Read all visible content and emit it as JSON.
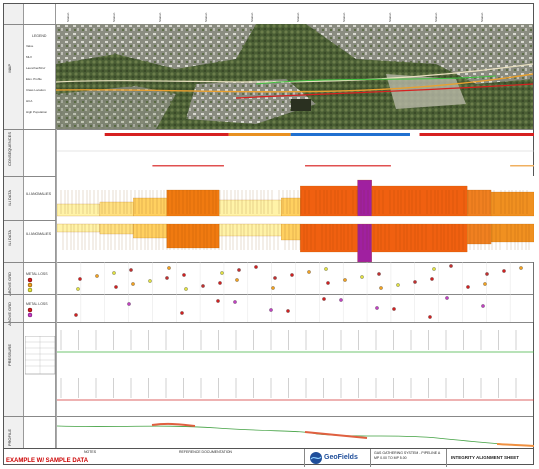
{
  "header": {
    "top_stations": [
      "Station",
      "Station",
      "Station",
      "Station",
      "Station",
      "Station",
      "Station",
      "Station",
      "Station",
      "Station"
    ]
  },
  "rows": {
    "map": "MAP",
    "consequence": "CONSEQUENCES",
    "ili_one": "ILI DATA",
    "ili_two": "ILI DATA",
    "above_one": "ABOVE GRD",
    "above_two": "ABOVE GRD",
    "pressure": "PRESSURE",
    "profile": "PROFILE"
  },
  "legend": {
    "map_title": "LEGEND",
    "map_items": [
      "Valve",
      "MLV",
      "Launcher/Rcvr",
      "Elev. Profile",
      "Class Location",
      "HCA",
      "High Population"
    ],
    "ili_one_title": "ILI ANOMALIES",
    "ili_two_title": "ILI ANOMALIES",
    "metal_one_title": "METAL LOSS",
    "metal_two_title": "METAL LOSS"
  },
  "consequence_bars_top": [
    {
      "start": 0.1,
      "end": 0.36,
      "color": "#d62020"
    },
    {
      "start": 0.36,
      "end": 0.49,
      "color": "#e89020"
    },
    {
      "start": 0.49,
      "end": 0.74,
      "color": "#2070d0"
    },
    {
      "start": 0.76,
      "end": 1.0,
      "color": "#d62020"
    }
  ],
  "consequence_bars_bottom": [
    {
      "start": 0.2,
      "end": 0.35,
      "color": "#e05050"
    },
    {
      "start": 0.52,
      "end": 0.7,
      "color": "#e05050"
    },
    {
      "start": 0.95,
      "end": 1.0,
      "color": "#f0b060"
    }
  ],
  "footer": {
    "notes": "NOTES",
    "reference": "REFERENCE DOCUMENTATION",
    "example": "EXAMPLE W/ SAMPLE DATA",
    "logo": "GeoFields",
    "sheet_title": "INTEGRITY ALIGNMENT SHEET",
    "system_line1": "GAS GATHERING SYSTEM - PIPELINE A",
    "system_line2": "MP 0.00 TO MP 5.00"
  }
}
